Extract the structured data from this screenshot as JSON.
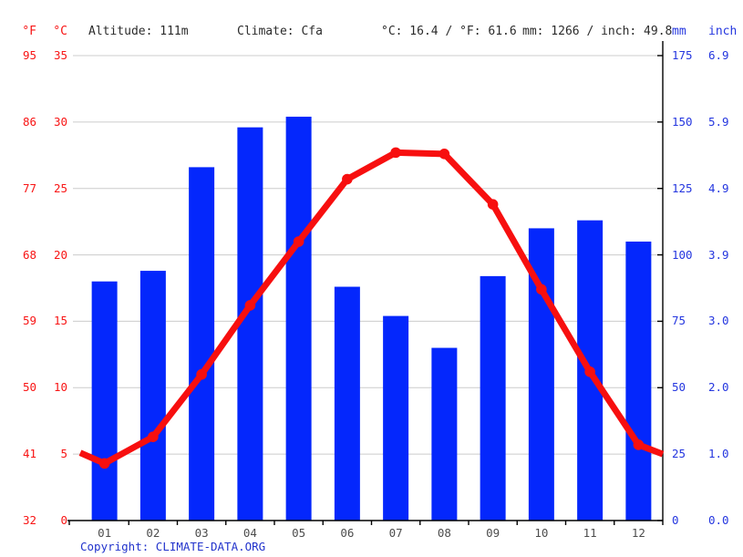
{
  "header": {
    "unit_f": "°F",
    "unit_c": "°C",
    "altitude": "Altitude: 111m",
    "climate": "Climate: Cfa",
    "temperature_summary": "°C: 16.4 / °F: 61.6",
    "precipitation_summary": "mm: 1266 / inch: 49.8",
    "unit_mm": "mm",
    "unit_inch": "inch"
  },
  "footer": {
    "copyright_label": "Copyright:",
    "copyright_link": "CLIMATE-DATA.ORG"
  },
  "colors": {
    "bar": "#0427fc",
    "line": "#f70f0f",
    "left_axis_text": "#f81414",
    "right_axis_text": "#2436df",
    "grid": "#cccccc",
    "axis": "#000000",
    "header_text": "#2b2b2b",
    "month_text": "#4d4d4d",
    "copyright": "#2233cc"
  },
  "chart_data": {
    "type": "bar",
    "subtype": "climate-bar-line-combo",
    "title": "",
    "categories": [
      "01",
      "02",
      "03",
      "04",
      "05",
      "06",
      "07",
      "08",
      "09",
      "10",
      "11",
      "12"
    ],
    "series": [
      {
        "name": "precipitation",
        "type": "bar",
        "unit": "mm",
        "values": [
          90,
          94,
          133,
          148,
          152,
          88,
          77,
          65,
          92,
          110,
          113,
          105
        ]
      },
      {
        "name": "temperature",
        "type": "line",
        "unit": "°C",
        "values": [
          4.3,
          6.3,
          11.0,
          16.2,
          21.0,
          25.7,
          27.7,
          27.6,
          23.8,
          17.4,
          11.2,
          5.7
        ]
      }
    ],
    "line_edge_values": {
      "left": 5.1,
      "right": 5.0
    },
    "axes": {
      "left_f_ticks": [
        "95",
        "86",
        "77",
        "68",
        "59",
        "50",
        "41",
        "32"
      ],
      "left_c_ticks": [
        "35",
        "30",
        "25",
        "20",
        "15",
        "10",
        "5",
        "0"
      ],
      "right_mm_ticks": [
        "175",
        "150",
        "125",
        "100",
        "75",
        "50",
        "25",
        "0"
      ],
      "right_inch_ticks": [
        "6.9",
        "5.9",
        "4.9",
        "3.9",
        "3.0",
        "2.0",
        "1.0",
        "0.0"
      ],
      "temp_axis_range_c": [
        0,
        35
      ],
      "precip_axis_range_mm": [
        0,
        175
      ],
      "grid": true,
      "legend": "none"
    }
  }
}
